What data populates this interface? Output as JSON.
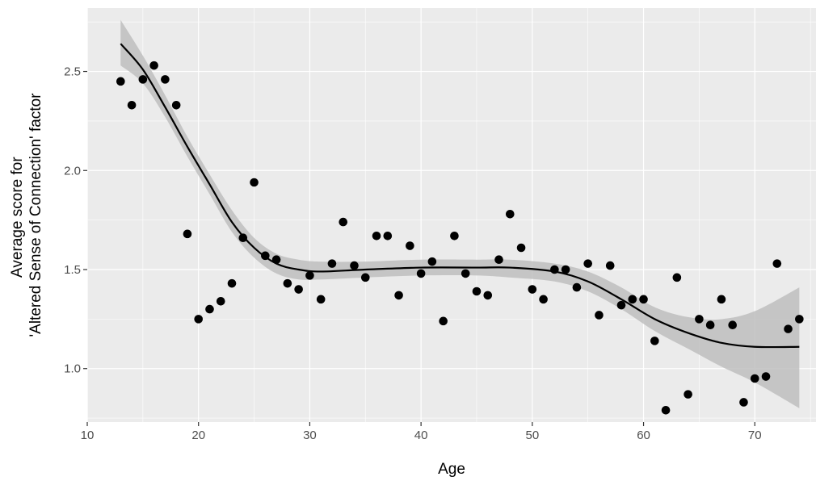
{
  "chart_data": {
    "type": "scatter",
    "title": "",
    "xlabel": "Age",
    "ylabel_lines": [
      "Average score for",
      "'Altered Sense of Connection' factor"
    ],
    "xlim": [
      10,
      75.5
    ],
    "ylim": [
      0.73,
      2.82
    ],
    "x_ticks": [
      10,
      20,
      30,
      40,
      50,
      60,
      70
    ],
    "x_tick_labels": [
      "10",
      "20",
      "30",
      "40",
      "50",
      "60",
      "70"
    ],
    "y_ticks": [
      1.0,
      1.5,
      2.0,
      2.5
    ],
    "y_tick_labels": [
      "1.0",
      "1.5",
      "2.0",
      "2.5"
    ],
    "grid": true,
    "legend": "none",
    "points": [
      {
        "x": 13,
        "y": 2.45
      },
      {
        "x": 14,
        "y": 2.33
      },
      {
        "x": 15,
        "y": 2.46
      },
      {
        "x": 16,
        "y": 2.53
      },
      {
        "x": 17,
        "y": 2.46
      },
      {
        "x": 18,
        "y": 2.33
      },
      {
        "x": 19,
        "y": 1.68
      },
      {
        "x": 20,
        "y": 1.25
      },
      {
        "x": 21,
        "y": 1.3
      },
      {
        "x": 22,
        "y": 1.34
      },
      {
        "x": 23,
        "y": 1.43
      },
      {
        "x": 24,
        "y": 1.66
      },
      {
        "x": 25,
        "y": 1.94
      },
      {
        "x": 26,
        "y": 1.57
      },
      {
        "x": 27,
        "y": 1.55
      },
      {
        "x": 28,
        "y": 1.43
      },
      {
        "x": 29,
        "y": 1.4
      },
      {
        "x": 30,
        "y": 1.47
      },
      {
        "x": 31,
        "y": 1.35
      },
      {
        "x": 32,
        "y": 1.53
      },
      {
        "x": 33,
        "y": 1.74
      },
      {
        "x": 34,
        "y": 1.52
      },
      {
        "x": 35,
        "y": 1.46
      },
      {
        "x": 36,
        "y": 1.67
      },
      {
        "x": 37,
        "y": 1.67
      },
      {
        "x": 38,
        "y": 1.37
      },
      {
        "x": 39,
        "y": 1.62
      },
      {
        "x": 40,
        "y": 1.48
      },
      {
        "x": 41,
        "y": 1.54
      },
      {
        "x": 42,
        "y": 1.24
      },
      {
        "x": 43,
        "y": 1.67
      },
      {
        "x": 44,
        "y": 1.48
      },
      {
        "x": 45,
        "y": 1.39
      },
      {
        "x": 46,
        "y": 1.37
      },
      {
        "x": 47,
        "y": 1.55
      },
      {
        "x": 48,
        "y": 1.78
      },
      {
        "x": 49,
        "y": 1.61
      },
      {
        "x": 50,
        "y": 1.4
      },
      {
        "x": 51,
        "y": 1.35
      },
      {
        "x": 52,
        "y": 1.5
      },
      {
        "x": 53,
        "y": 1.5
      },
      {
        "x": 54,
        "y": 1.41
      },
      {
        "x": 55,
        "y": 1.53
      },
      {
        "x": 56,
        "y": 1.27
      },
      {
        "x": 57,
        "y": 1.52
      },
      {
        "x": 58,
        "y": 1.32
      },
      {
        "x": 59,
        "y": 1.35
      },
      {
        "x": 60,
        "y": 1.35
      },
      {
        "x": 61,
        "y": 1.14
      },
      {
        "x": 62,
        "y": 0.79
      },
      {
        "x": 63,
        "y": 1.46
      },
      {
        "x": 64,
        "y": 0.87
      },
      {
        "x": 65,
        "y": 1.25
      },
      {
        "x": 66,
        "y": 1.22
      },
      {
        "x": 67,
        "y": 1.35
      },
      {
        "x": 68,
        "y": 1.22
      },
      {
        "x": 69,
        "y": 0.83
      },
      {
        "x": 70,
        "y": 0.95
      },
      {
        "x": 71,
        "y": 0.96
      },
      {
        "x": 72,
        "y": 1.53
      },
      {
        "x": 73,
        "y": 1.2
      },
      {
        "x": 74,
        "y": 1.25
      }
    ],
    "smooth_fit": {
      "x": [
        13,
        15,
        17,
        19,
        21,
        23,
        25,
        27,
        29,
        31,
        35,
        40,
        45,
        48,
        52,
        55,
        58,
        61,
        64,
        67,
        70,
        74
      ],
      "y": [
        2.64,
        2.51,
        2.32,
        2.12,
        1.93,
        1.74,
        1.61,
        1.53,
        1.5,
        1.49,
        1.5,
        1.51,
        1.51,
        1.51,
        1.49,
        1.44,
        1.35,
        1.25,
        1.18,
        1.13,
        1.11,
        1.11
      ],
      "lower": [
        2.53,
        2.44,
        2.27,
        2.07,
        1.88,
        1.69,
        1.56,
        1.48,
        1.45,
        1.45,
        1.46,
        1.47,
        1.47,
        1.46,
        1.44,
        1.39,
        1.3,
        1.19,
        1.1,
        1.01,
        0.93,
        0.8
      ],
      "upper": [
        2.76,
        2.58,
        2.38,
        2.17,
        1.98,
        1.8,
        1.66,
        1.58,
        1.55,
        1.54,
        1.54,
        1.55,
        1.55,
        1.55,
        1.53,
        1.49,
        1.41,
        1.31,
        1.26,
        1.25,
        1.29,
        1.41
      ]
    },
    "colors": {
      "panel": "#ebebeb",
      "grid_major": "#ffffff",
      "points": "#000000",
      "line": "#000000",
      "band": "#bebebe",
      "tick": "#333333"
    }
  }
}
